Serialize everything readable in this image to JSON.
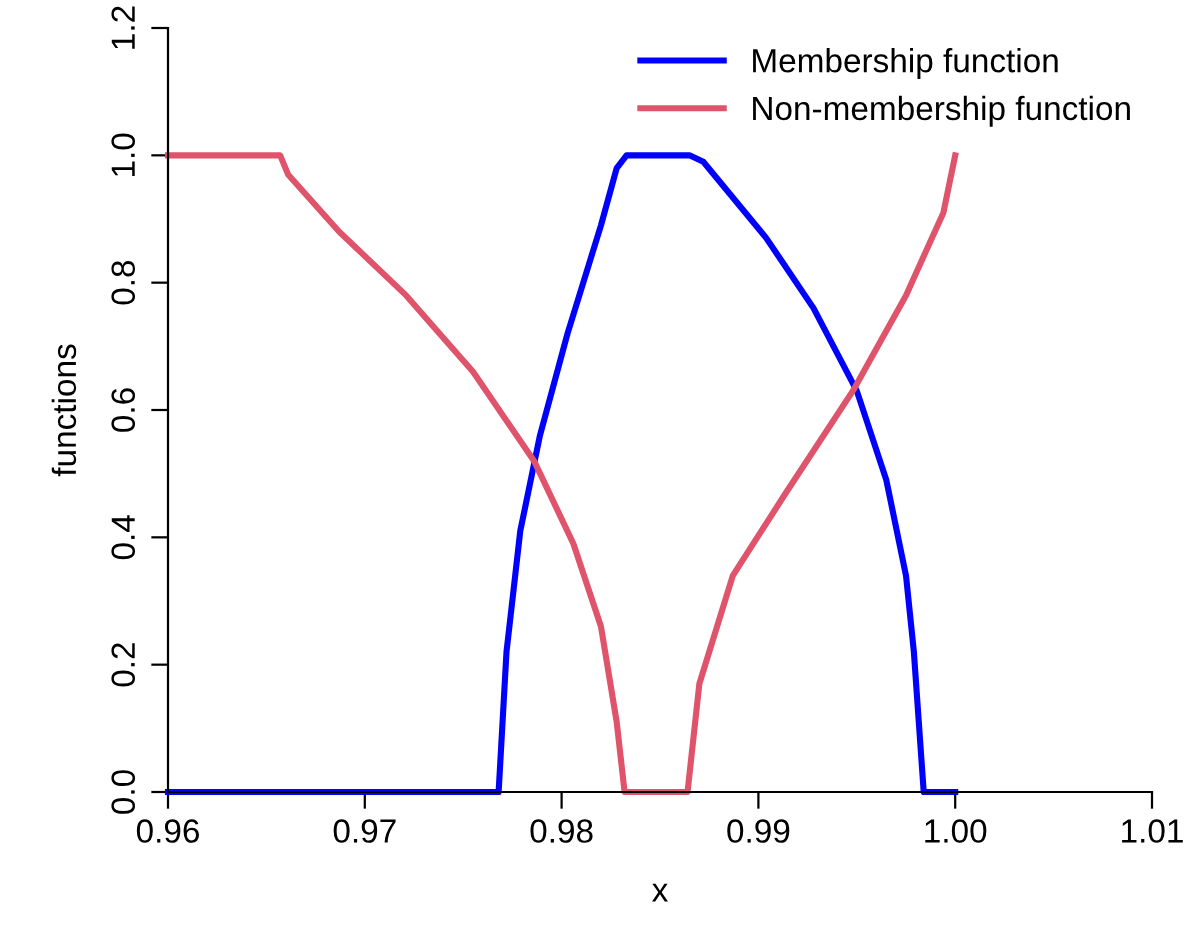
{
  "chart_data": {
    "type": "line",
    "xlabel": "x",
    "ylabel": "functions",
    "xlim": [
      0.96,
      1.01
    ],
    "ylim": [
      0,
      1.2
    ],
    "xticks": [
      {
        "value": 0.96,
        "label": "0.96"
      },
      {
        "value": 0.97,
        "label": "0.97"
      },
      {
        "value": 0.98,
        "label": "0.98"
      },
      {
        "value": 0.99,
        "label": "0.99"
      },
      {
        "value": 1.0,
        "label": "1.00"
      },
      {
        "value": 1.01,
        "label": "1.01"
      }
    ],
    "yticks": [
      {
        "value": 0,
        "label": "0.0"
      },
      {
        "value": 0.2,
        "label": "0.2"
      },
      {
        "value": 0.4,
        "label": "0.4"
      },
      {
        "value": 0.6,
        "label": "0.6"
      },
      {
        "value": 0.8,
        "label": "0.8"
      },
      {
        "value": 1.0,
        "label": "1.0"
      },
      {
        "value": 1.2,
        "label": "1.2"
      }
    ],
    "grid": false,
    "legend": "top right",
    "marker": "none",
    "line_style": "solid",
    "series": [
      {
        "name": "Membership function",
        "color": "#0000ff",
        "x": [
          0.96,
          0.9768,
          0.9772,
          0.9779,
          0.9789,
          0.9803,
          0.982,
          0.9828,
          0.9833,
          0.9865,
          0.9872,
          0.9904,
          0.9928,
          0.995,
          0.9965,
          0.9975,
          0.9979,
          0.9984,
          1.0
        ],
        "values": [
          0,
          0,
          0.22,
          0.41,
          0.56,
          0.72,
          0.89,
          0.98,
          1.0,
          1.0,
          0.99,
          0.87,
          0.76,
          0.63,
          0.49,
          0.34,
          0.22,
          0,
          0
        ]
      },
      {
        "name": "Non-membership function",
        "color": "#df536b",
        "x": [
          0.96,
          0.9657,
          0.9661,
          0.9687,
          0.9721,
          0.9755,
          0.9786,
          0.9806,
          0.982,
          0.9828,
          0.9832,
          0.9864,
          0.987,
          0.9887,
          0.9914,
          0.9948,
          0.9975,
          0.9994,
          1.0
        ],
        "values": [
          1.0,
          1.0,
          0.97,
          0.88,
          0.78,
          0.66,
          0.52,
          0.39,
          0.26,
          0.11,
          0,
          0,
          0.17,
          0.34,
          0.47,
          0.63,
          0.78,
          0.91,
          1.0
        ]
      }
    ]
  }
}
